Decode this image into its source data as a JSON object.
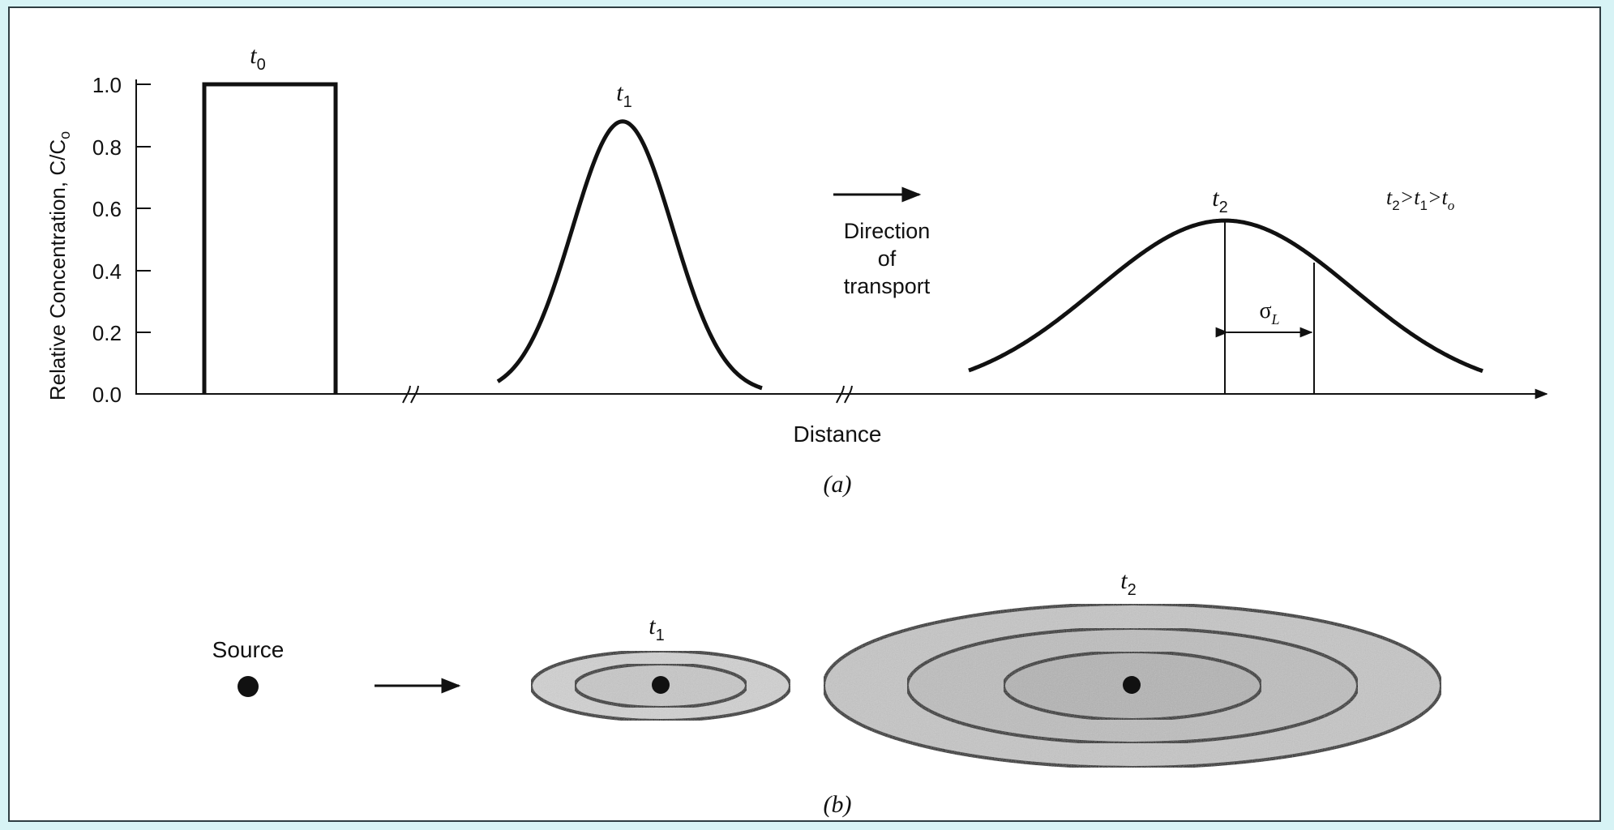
{
  "panel_a": {
    "y_axis_label": "Relative Concentration, C/C",
    "y_axis_label_sub": "o",
    "y_ticks": [
      "1.0",
      "0.8",
      "0.6",
      "0.4",
      "0.2",
      "0.0"
    ],
    "x_axis_label": "Distance",
    "curve_labels": {
      "t0": {
        "base": "t",
        "sub": "0"
      },
      "t1": {
        "base": "t",
        "sub": "1"
      },
      "t2": {
        "base": "t",
        "sub": "2"
      }
    },
    "direction_lines": [
      "Direction",
      "of",
      "transport"
    ],
    "sigma_label": {
      "base": "σ",
      "sub": "L"
    },
    "time_order": {
      "t2": "t",
      "s2": "2",
      "gt1": ">t",
      "s1": "1",
      "gt2": ">t",
      "s0": "o"
    },
    "caption": "(a)"
  },
  "panel_b": {
    "source_label": "Source",
    "plume_labels": {
      "t1": {
        "base": "t",
        "sub": "1"
      },
      "t2": {
        "base": "t",
        "sub": "2"
      }
    },
    "caption": "(b)"
  },
  "chart_data": {
    "type": "line",
    "xlabel": "Distance",
    "ylabel": "Relative Concentration, C/Co",
    "ylim": [
      0,
      1.0
    ],
    "yticks": [
      0.0,
      0.2,
      0.4,
      0.6,
      0.8,
      1.0
    ],
    "series": [
      {
        "name": "t0",
        "shape": "square pulse",
        "peak": 1.0
      },
      {
        "name": "t1",
        "shape": "gaussian",
        "peak": 0.88
      },
      {
        "name": "t2",
        "shape": "gaussian",
        "peak": 0.56
      }
    ],
    "annotations": [
      "Direction of transport",
      "σL",
      "t2>t1>to"
    ]
  },
  "colors": {
    "background": "#d7f3f5",
    "ink": "#111111",
    "plume_fill": "#c9c9c9",
    "plume_fill_dark": "#b4b4b4"
  }
}
